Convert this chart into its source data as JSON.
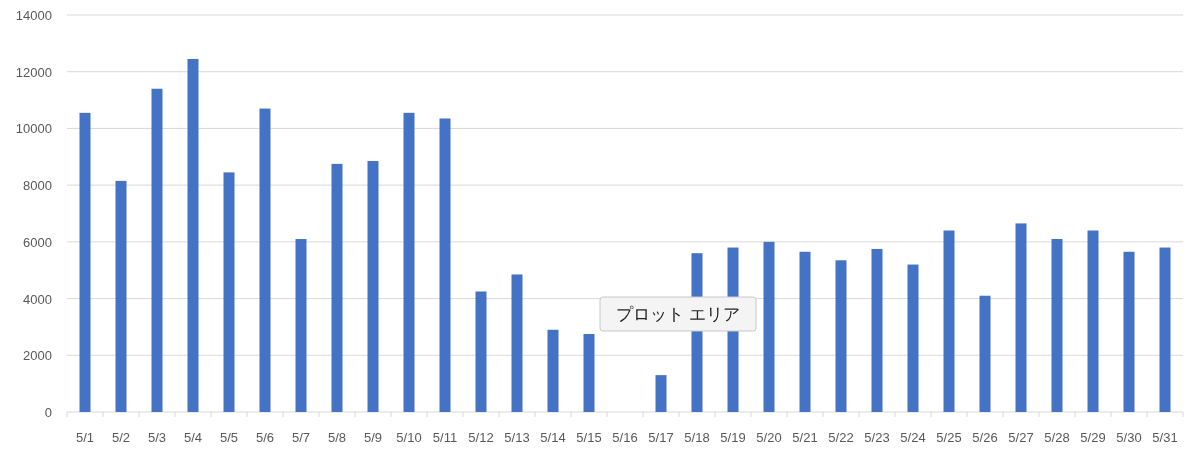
{
  "chart_data": {
    "type": "bar",
    "categories": [
      "5/1",
      "5/2",
      "5/3",
      "5/4",
      "5/5",
      "5/6",
      "5/7",
      "5/8",
      "5/9",
      "5/10",
      "5/11",
      "5/12",
      "5/13",
      "5/14",
      "5/15",
      "5/16",
      "5/17",
      "5/18",
      "5/19",
      "5/20",
      "5/21",
      "5/22",
      "5/23",
      "5/24",
      "5/25",
      "5/26",
      "5/27",
      "5/28",
      "5/29",
      "5/30",
      "5/31"
    ],
    "values": [
      10550,
      8150,
      11400,
      12450,
      8450,
      10700,
      6100,
      8750,
      8850,
      10550,
      10350,
      4250,
      4850,
      2900,
      2750,
      null,
      1300,
      5600,
      5800,
      6000,
      5650,
      5350,
      5750,
      5200,
      6400,
      4100,
      6650,
      6100,
      6400,
      5650,
      5800
    ],
    "color": "#4472c4",
    "ylim": [
      0,
      14000
    ],
    "yticks": [
      0,
      2000,
      4000,
      6000,
      8000,
      10000,
      12000,
      14000
    ],
    "grid": "y",
    "annotations": [
      "プロット エリア"
    ]
  }
}
